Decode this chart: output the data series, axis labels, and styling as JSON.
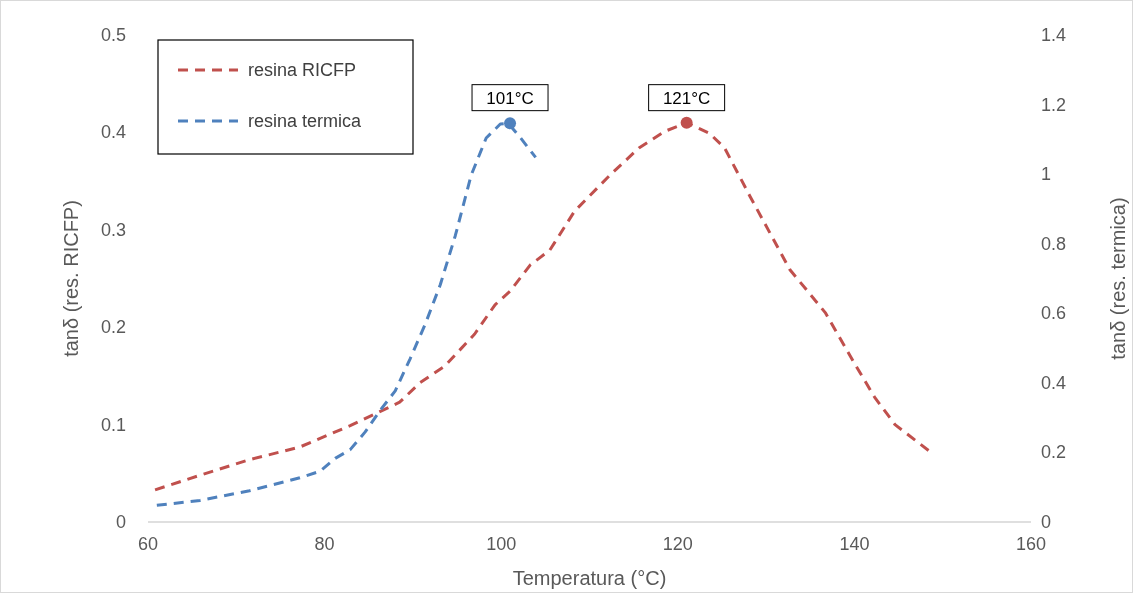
{
  "chart_data": {
    "type": "line",
    "xlabel": "Temperatura (°C)",
    "ylabel": "tanδ (res. RICFP)",
    "y2label": "tanδ  (res. termica)",
    "xlim": [
      60,
      160
    ],
    "xticks": [
      60,
      80,
      100,
      120,
      140,
      160
    ],
    "ylim": [
      0,
      0.5
    ],
    "yticks": [
      0,
      0.1,
      0.2,
      0.3,
      0.4,
      0.5
    ],
    "y2lim": [
      0,
      1.4
    ],
    "y2ticks": [
      0,
      0.2,
      0.4,
      0.6,
      0.8,
      1,
      1.2,
      1.4
    ],
    "grid": false,
    "legend": "top left",
    "line_style": "dashed",
    "marker": "none",
    "series": [
      {
        "name": "resina RICFP",
        "color": "#c0504d",
        "x": [
          60.8,
          65.9,
          71.5,
          77.2,
          82.9,
          88.5,
          90.8,
          93.6,
          97,
          99.3,
          101,
          103.3,
          105.5,
          108.3,
          112.3,
          115.6,
          118.5,
          121,
          123.6,
          125.3,
          128.2,
          132.7,
          136.7,
          140,
          142.3,
          144.6,
          148.6
        ],
        "values": [
          0.033,
          0.048,
          0.064,
          0.077,
          0.099,
          0.123,
          0.143,
          0.16,
          0.193,
          0.223,
          0.237,
          0.264,
          0.279,
          0.319,
          0.356,
          0.384,
          0.401,
          0.41,
          0.399,
          0.384,
          0.334,
          0.259,
          0.215,
          0.163,
          0.128,
          0.1,
          0.072
        ]
      },
      {
        "name": "resina termica",
        "color": "#4f81bd",
        "axis": "y2",
        "x": [
          61,
          65.9,
          71.5,
          77.2,
          79.5,
          81.2,
          82.9,
          84.6,
          86.3,
          88,
          89.7,
          91.4,
          93.1,
          94.8,
          96.6,
          98.3,
          99.9,
          100.8,
          102.2,
          103.9
        ],
        "values": [
          0.048,
          0.062,
          0.09,
          0.127,
          0.146,
          0.183,
          0.208,
          0.259,
          0.321,
          0.377,
          0.47,
          0.569,
          0.682,
          0.823,
          0.997,
          1.104,
          1.144,
          1.146,
          1.104,
          1.048
        ]
      },
      {
        "type": "scatter",
        "marker": "circle",
        "color": "#4f81bd",
        "axis": "y2",
        "x": [
          101
        ],
        "values": [
          1.146
        ]
      },
      {
        "type": "scatter",
        "marker": "circle",
        "color": "#c0504d",
        "x": [
          121
        ],
        "values": [
          0.41
        ]
      }
    ],
    "annotations": [
      {
        "text": "101°C",
        "x": 101,
        "y": 0.41
      },
      {
        "text": "121°C",
        "x": 121,
        "y": 0.41
      }
    ]
  }
}
